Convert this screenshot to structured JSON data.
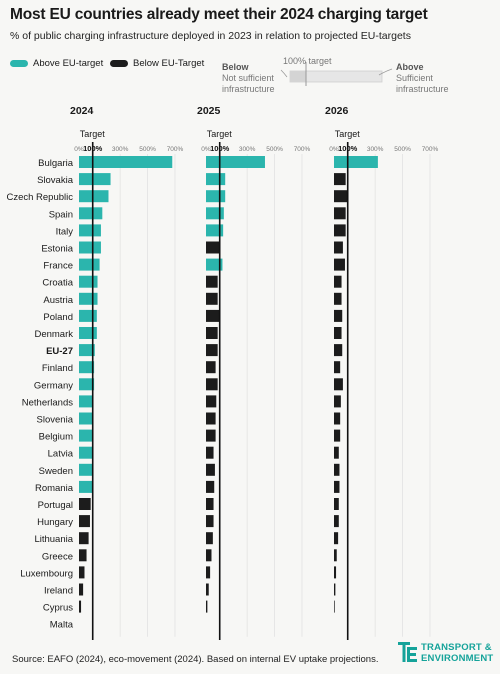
{
  "title": "Most EU countries already meet their 2024 charging target",
  "subtitle": "% of public charging infrastructure deployed in 2023 in relation to projected EU-targets",
  "legend": {
    "above": "Above EU-target",
    "below": "Below EU-Target"
  },
  "explainer": {
    "target_label": "100% target",
    "below_title": "Below",
    "below_text_1": "Not sufficient",
    "below_text_2": "infrastructure",
    "above_title": "Above",
    "above_text_1": "Sufficient",
    "above_text_2": "infrastructure"
  },
  "source": "Source: EAFO (2024), eco-movement (2024). Based on internal EV uptake projections.",
  "logo": {
    "line1": "TRANSPORT &",
    "line2": "ENVIRONMENT"
  },
  "colors": {
    "above": "#2bb5ad",
    "below": "#1c1c1c",
    "target_line": "#111111"
  },
  "chart_data": {
    "type": "bar",
    "orientation": "horizontal",
    "x_axis": {
      "ticks": [
        "0%",
        "100%",
        "300%",
        "500%",
        "700%"
      ],
      "tick_values": [
        0,
        100,
        300,
        500,
        700
      ],
      "xlim": [
        0,
        700
      ],
      "target_value": 100,
      "target_label": "Target",
      "bottom_label": "100%"
    },
    "categories": [
      "Bulgaria",
      "Slovakia",
      "Czech Republic",
      "Spain",
      "Italy",
      "Estonia",
      "France",
      "Croatia",
      "Austria",
      "Poland",
      "Denmark",
      "EU-27",
      "Finland",
      "Germany",
      "Netherlands",
      "Slovenia",
      "Belgium",
      "Latvia",
      "Sweden",
      "Romania",
      "Portugal",
      "Hungary",
      "Lithuania",
      "Greece",
      "Luxembourg",
      "Ireland",
      "Cyprus",
      "Malta"
    ],
    "bold_categories": [
      "EU-27"
    ],
    "panels": [
      {
        "title": "2024",
        "values": [
          680,
          230,
          215,
          170,
          160,
          160,
          150,
          135,
          135,
          130,
          130,
          115,
          110,
          110,
          100,
          105,
          105,
          100,
          100,
          100,
          85,
          80,
          70,
          55,
          40,
          30,
          15,
          0
        ]
      },
      {
        "title": "2025",
        "values": [
          430,
          140,
          140,
          130,
          125,
          95,
          120,
          85,
          85,
          95,
          85,
          85,
          70,
          85,
          75,
          70,
          70,
          55,
          65,
          60,
          55,
          55,
          50,
          40,
          30,
          20,
          10,
          0
        ]
      },
      {
        "title": "2026",
        "values": [
          320,
          85,
          95,
          85,
          85,
          65,
          80,
          55,
          55,
          60,
          55,
          60,
          45,
          65,
          50,
          45,
          45,
          35,
          40,
          40,
          35,
          35,
          30,
          20,
          15,
          10,
          5,
          0
        ]
      }
    ]
  }
}
